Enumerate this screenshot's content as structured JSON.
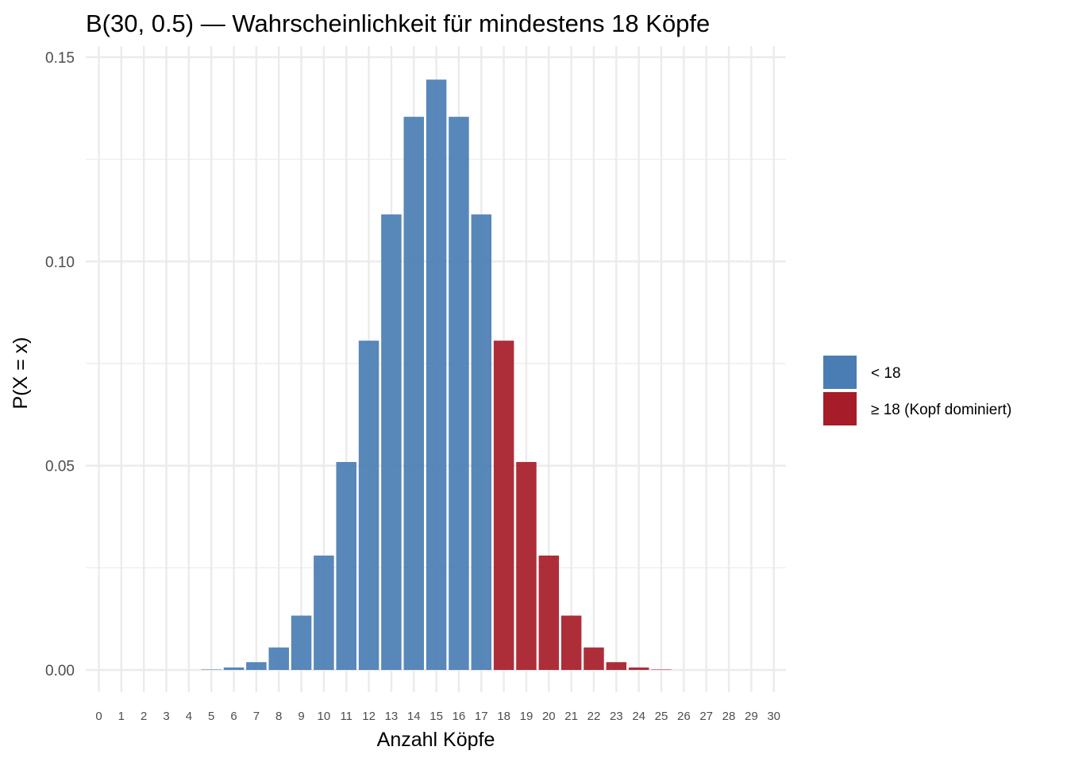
{
  "chart_data": {
    "type": "bar",
    "title": "B(30, 0.5) — Wahrscheinlichkeit für mindestens 18 Köpfe",
    "xlabel": "Anzahl Köpfe",
    "ylabel": "P(X = x)",
    "ylim": [
      0,
      0.15
    ],
    "yticks": [
      "0.00",
      "0.05",
      "0.10",
      "0.15"
    ],
    "ytick_values": [
      0,
      0.05,
      0.1,
      0.15
    ],
    "categories": [
      "0",
      "1",
      "2",
      "3",
      "4",
      "5",
      "6",
      "7",
      "8",
      "9",
      "10",
      "11",
      "12",
      "13",
      "14",
      "15",
      "16",
      "17",
      "18",
      "19",
      "20",
      "21",
      "22",
      "23",
      "24",
      "25",
      "26",
      "27",
      "28",
      "29",
      "30"
    ],
    "values": [
      0.0,
      0.0,
      0.0,
      0.0,
      0.0,
      0.0001,
      0.0006,
      0.0019,
      0.0055,
      0.0133,
      0.028,
      0.0509,
      0.0806,
      0.1115,
      0.1354,
      0.1445,
      0.1354,
      0.1115,
      0.0806,
      0.0509,
      0.028,
      0.0133,
      0.0055,
      0.0019,
      0.0006,
      0.0001,
      0.0,
      0.0,
      0.0,
      0.0,
      0.0
    ],
    "threshold": 18,
    "series": [
      {
        "name": "< 18",
        "color": "#4a7db3"
      },
      {
        "name": "≥ 18 (Kopf dominiert)",
        "color": "#a61c28"
      }
    ],
    "grid": true,
    "legend_position": "right"
  }
}
